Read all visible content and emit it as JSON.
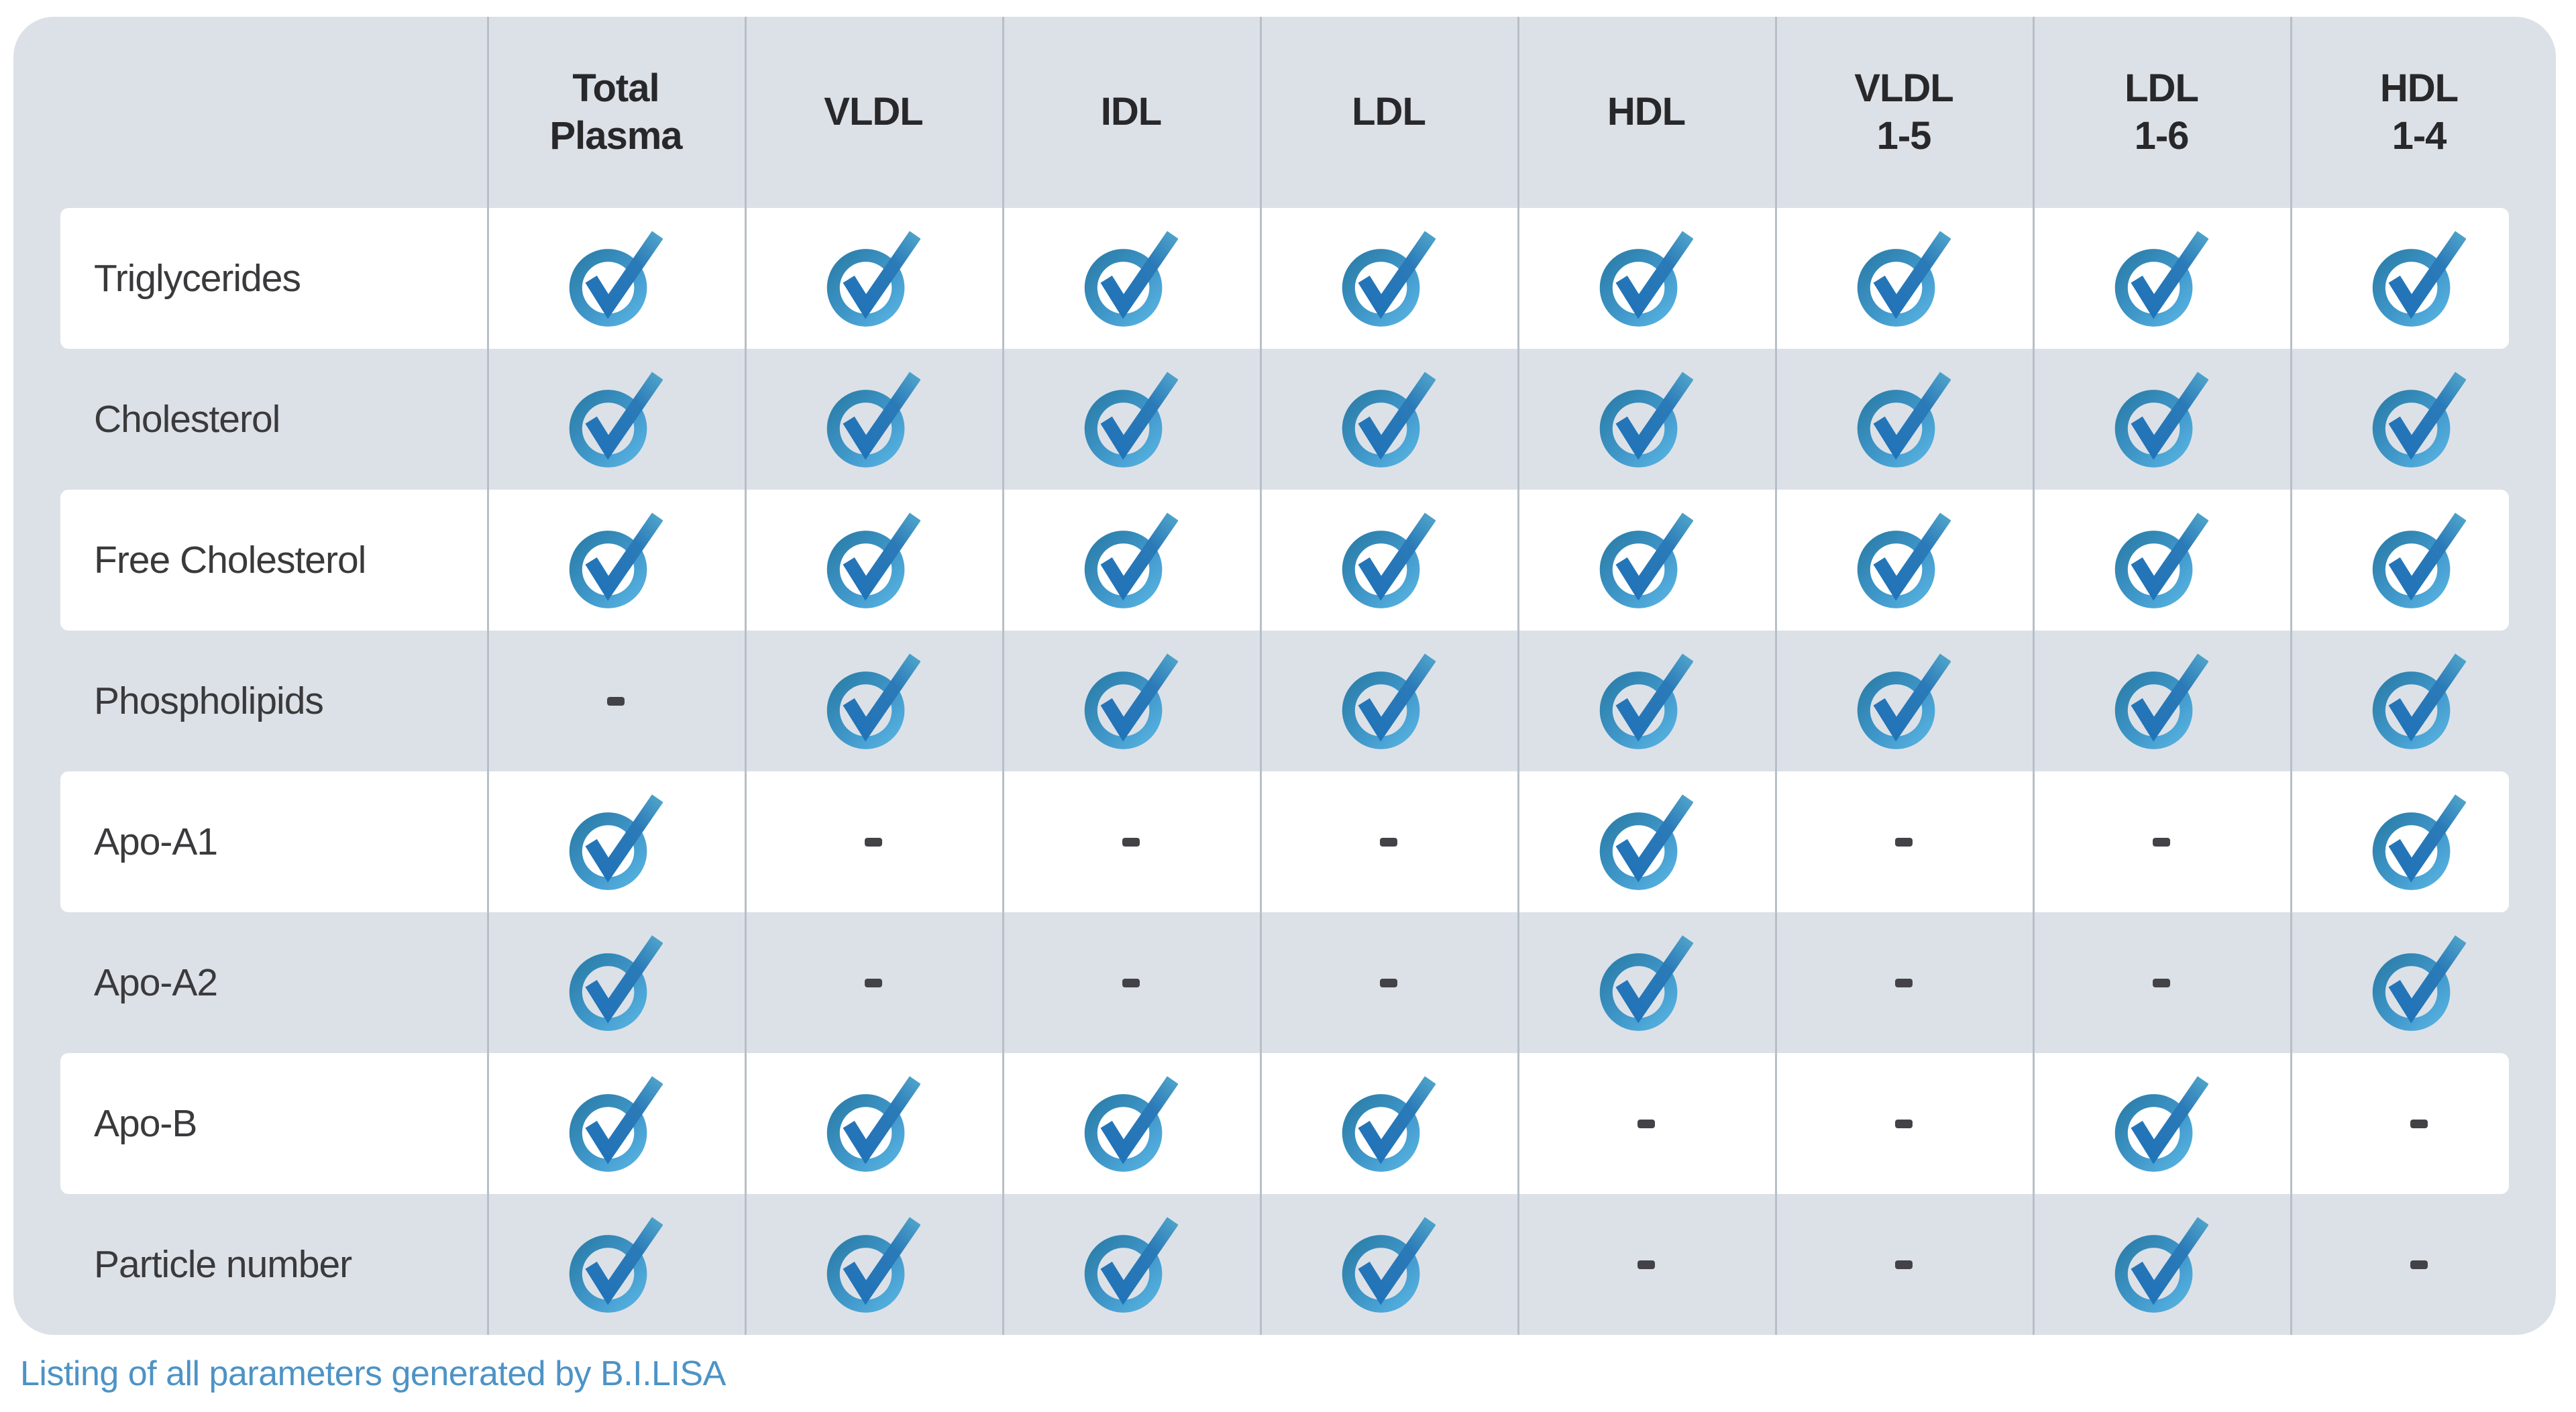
{
  "table": {
    "columns": [
      {
        "label": "Total\nPlasma",
        "id": "total-plasma"
      },
      {
        "label": "VLDL",
        "id": "vldl"
      },
      {
        "label": "IDL",
        "id": "idl"
      },
      {
        "label": "LDL",
        "id": "ldl"
      },
      {
        "label": "HDL",
        "id": "hdl"
      },
      {
        "label": "VLDL\n1-5",
        "id": "vldl-1-5"
      },
      {
        "label": "LDL\n1-6",
        "id": "ldl-1-6"
      },
      {
        "label": "HDL\n1-4",
        "id": "hdl-1-4"
      }
    ],
    "rows": [
      {
        "label": "Triglycerides",
        "values": [
          "check",
          "check",
          "check",
          "check",
          "check",
          "check",
          "check",
          "check"
        ]
      },
      {
        "label": "Cholesterol",
        "values": [
          "check",
          "check",
          "check",
          "check",
          "check",
          "check",
          "check",
          "check"
        ]
      },
      {
        "label": "Free Cholesterol",
        "values": [
          "check",
          "check",
          "check",
          "check",
          "check",
          "check",
          "check",
          "check"
        ]
      },
      {
        "label": "Phospholipids",
        "values": [
          "dash",
          "check",
          "check",
          "check",
          "check",
          "check",
          "check",
          "check"
        ]
      },
      {
        "label": "Apo-A1",
        "values": [
          "check",
          "dash",
          "dash",
          "dash",
          "check",
          "dash",
          "dash",
          "check"
        ]
      },
      {
        "label": "Apo-A2",
        "values": [
          "check",
          "dash",
          "dash",
          "dash",
          "check",
          "dash",
          "dash",
          "check"
        ]
      },
      {
        "label": "Apo-B",
        "values": [
          "check",
          "check",
          "check",
          "check",
          "dash",
          "dash",
          "check",
          "dash"
        ]
      },
      {
        "label": "Particle number",
        "values": [
          "check",
          "check",
          "check",
          "check",
          "dash",
          "dash",
          "check",
          "dash"
        ]
      }
    ],
    "symbols": {
      "check": "circled-checkmark",
      "dash": "-"
    }
  },
  "caption": "Listing of all parameters generated by B.I.LISA",
  "colors": {
    "card_background": "#dce1e7",
    "row_stripe": "#ffffff",
    "divider": "#b7bfc7",
    "ring_dark": "#2b7da8",
    "ring_light": "#57b2e1",
    "check_dark": "#2173b8",
    "check_light": "#4da2c9",
    "dash": "#434347",
    "header_text": "#28282a",
    "row_text": "#3a3a3c",
    "caption_text": "#4d93c5"
  }
}
